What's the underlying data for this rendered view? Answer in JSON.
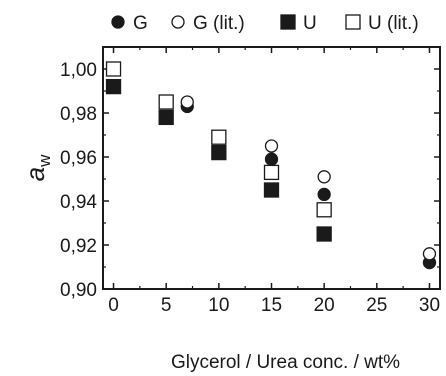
{
  "chart_data": {
    "type": "scatter",
    "xlabel": "Glycerol / Urea conc. / wt%",
    "ylabel": "a",
    "ylabel_subscript": "w",
    "xlim": [
      -1,
      31
    ],
    "ylim": [
      0.9,
      1.01
    ],
    "x_ticks": [
      {
        "value": 0,
        "label": "0"
      },
      {
        "value": 5,
        "label": "5"
      },
      {
        "value": 10,
        "label": "10"
      },
      {
        "value": 15,
        "label": "15"
      },
      {
        "value": 20,
        "label": "20"
      },
      {
        "value": 25,
        "label": "25"
      },
      {
        "value": 30,
        "label": "30"
      }
    ],
    "y_ticks": [
      {
        "value": 0.9,
        "label": "0,90"
      },
      {
        "value": 0.92,
        "label": "0,92"
      },
      {
        "value": 0.94,
        "label": "0,94"
      },
      {
        "value": 0.96,
        "label": "0,96"
      },
      {
        "value": 0.98,
        "label": "0,98"
      },
      {
        "value": 1.0,
        "label": "1,00"
      }
    ],
    "grid": false,
    "legend_position": "top",
    "series": [
      {
        "name": "G",
        "marker": "circle",
        "filled": true,
        "points": [
          {
            "x": 7,
            "y": 0.983
          },
          {
            "x": 15,
            "y": 0.959
          },
          {
            "x": 20,
            "y": 0.943
          },
          {
            "x": 30,
            "y": 0.912
          }
        ]
      },
      {
        "name": "G (lit.)",
        "marker": "circle",
        "filled": false,
        "points": [
          {
            "x": 7,
            "y": 0.985
          },
          {
            "x": 15,
            "y": 0.965
          },
          {
            "x": 20,
            "y": 0.951
          },
          {
            "x": 30,
            "y": 0.916
          }
        ]
      },
      {
        "name": "U",
        "marker": "square",
        "filled": true,
        "points": [
          {
            "x": 0,
            "y": 0.992
          },
          {
            "x": 5,
            "y": 0.978
          },
          {
            "x": 10,
            "y": 0.962
          },
          {
            "x": 15,
            "y": 0.945
          },
          {
            "x": 20,
            "y": 0.925
          }
        ]
      },
      {
        "name": "U (lit.)",
        "marker": "square",
        "filled": false,
        "points": [
          {
            "x": 0,
            "y": 1.0
          },
          {
            "x": 5,
            "y": 0.985
          },
          {
            "x": 10,
            "y": 0.969
          },
          {
            "x": 15,
            "y": 0.953
          },
          {
            "x": 20,
            "y": 0.936
          }
        ]
      }
    ],
    "colors": {
      "marker": "#1a1a1a",
      "axis": "#1a1a1a"
    }
  }
}
